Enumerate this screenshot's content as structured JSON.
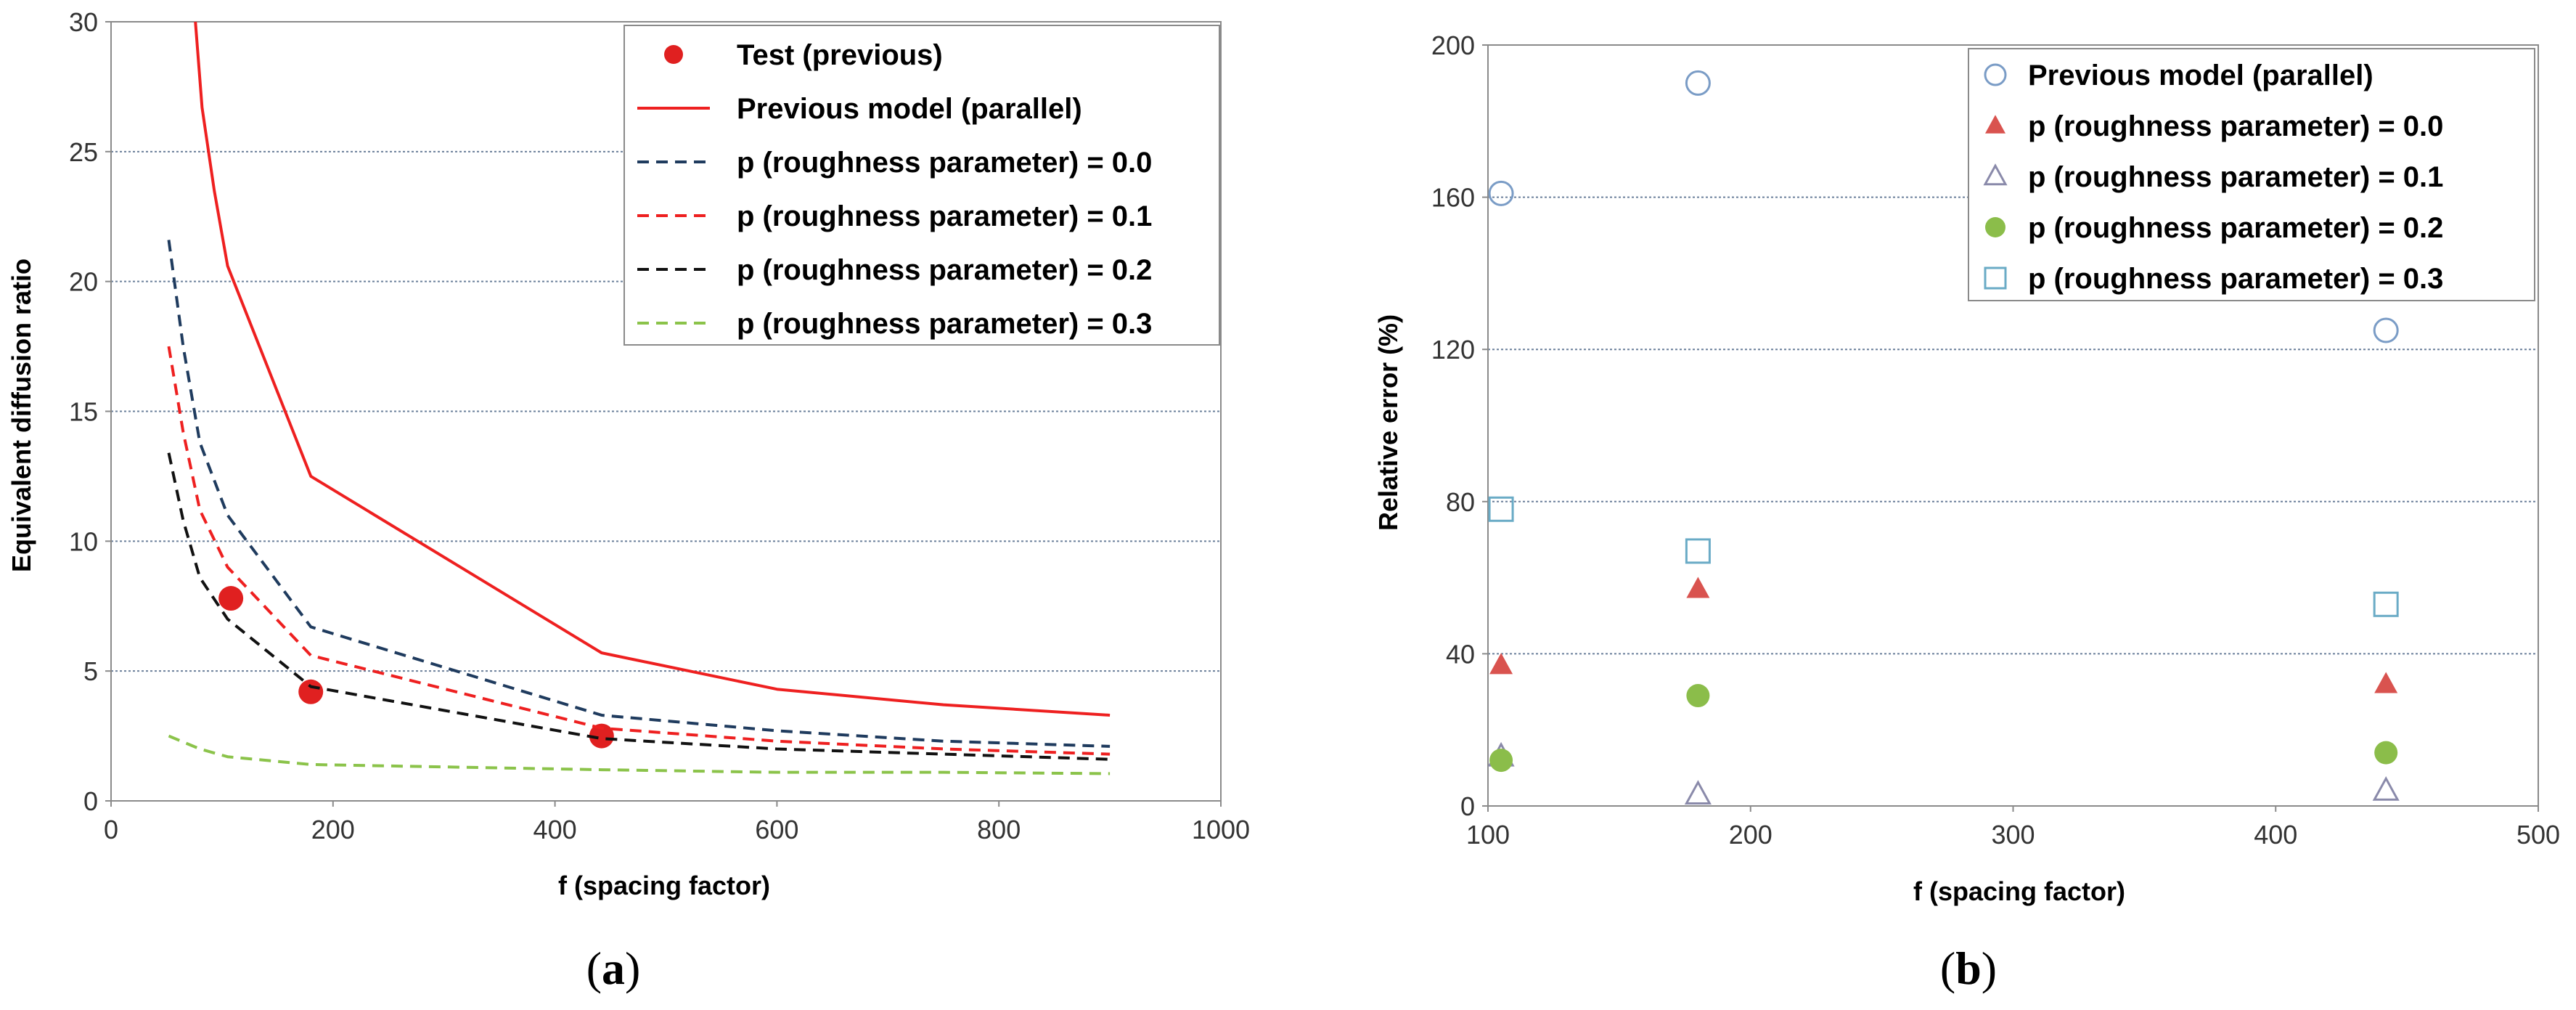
{
  "chart_data": [
    {
      "type": "line",
      "panel_label": "a",
      "xlabel": "f (spacing factor)",
      "ylabel": "Equivalent diffusion ratio",
      "xlim": [
        0,
        1000
      ],
      "ylim": [
        0,
        30
      ],
      "x_ticks": [
        0,
        200,
        400,
        600,
        800,
        1000
      ],
      "y_ticks": [
        0,
        5,
        10,
        15,
        20,
        25,
        30
      ],
      "grid": "horizontal dashed",
      "legend_position": "top-right",
      "series": [
        {
          "name": "Test (previous)",
          "style": "markers",
          "marker": "filled-circle",
          "color": "#e02020",
          "points": [
            [
              108,
              7.8
            ],
            [
              180,
              4.2
            ],
            [
              442,
              2.5
            ]
          ]
        },
        {
          "name": "Previous model (parallel)",
          "style": "solid",
          "color": "#ee2020",
          "points": [
            [
              76,
              30
            ],
            [
              82,
              26.7
            ],
            [
              93,
              23.5
            ],
            [
              105,
              20.6
            ],
            [
              180,
              12.5
            ],
            [
              442,
              5.7
            ],
            [
              600,
              4.3
            ],
            [
              750,
              3.7
            ],
            [
              900,
              3.3
            ]
          ]
        },
        {
          "name": "p (roughness parameter) = 0.0",
          "style": "dashed",
          "color": "#1f3b5e",
          "points": [
            [
              52,
              21.6
            ],
            [
              65,
              17.5
            ],
            [
              80,
              13.8
            ],
            [
              105,
              11.0
            ],
            [
              180,
              6.7
            ],
            [
              442,
              3.3
            ],
            [
              600,
              2.7
            ],
            [
              750,
              2.3
            ],
            [
              900,
              2.1
            ]
          ]
        },
        {
          "name": "p (roughness parameter) = 0.1",
          "style": "dashed",
          "color": "#ee2020",
          "points": [
            [
              52,
              17.5
            ],
            [
              65,
              14.2
            ],
            [
              80,
              11.2
            ],
            [
              105,
              9.0
            ],
            [
              180,
              5.6
            ],
            [
              442,
              2.8
            ],
            [
              600,
              2.3
            ],
            [
              750,
              2.0
            ],
            [
              900,
              1.8
            ]
          ]
        },
        {
          "name": "p (roughness parameter) = 0.2",
          "style": "dashed",
          "color": "#111111",
          "points": [
            [
              52,
              13.4
            ],
            [
              65,
              10.8
            ],
            [
              80,
              8.6
            ],
            [
              105,
              7.0
            ],
            [
              180,
              4.4
            ],
            [
              442,
              2.4
            ],
            [
              600,
              2.0
            ],
            [
              750,
              1.8
            ],
            [
              900,
              1.6
            ]
          ]
        },
        {
          "name": "p (roughness parameter) = 0.3",
          "style": "dashed",
          "color": "#8bc34a",
          "points": [
            [
              52,
              2.5
            ],
            [
              80,
              2.0
            ],
            [
              105,
              1.7
            ],
            [
              180,
              1.4
            ],
            [
              442,
              1.2
            ],
            [
              600,
              1.1
            ],
            [
              750,
              1.1
            ],
            [
              900,
              1.05
            ]
          ]
        }
      ]
    },
    {
      "type": "scatter",
      "panel_label": "b",
      "xlabel": "f (spacing factor)",
      "ylabel": "Relative error (%)",
      "xlim": [
        100,
        500
      ],
      "ylim": [
        0,
        200
      ],
      "x_ticks": [
        100,
        200,
        300,
        400,
        500
      ],
      "y_ticks": [
        0,
        40,
        80,
        120,
        160,
        200
      ],
      "grid": "horizontal dashed",
      "legend_position": "top-right",
      "series": [
        {
          "name": "Previous model (parallel)",
          "marker": "open-circle",
          "color": "#7a9cc6",
          "points": [
            [
              105,
              161
            ],
            [
              180,
              190
            ],
            [
              442,
              125
            ]
          ]
        },
        {
          "name": "p (roughness parameter) = 0.0",
          "marker": "filled-triangle",
          "color": "#d9534f",
          "points": [
            [
              105,
              37
            ],
            [
              180,
              57
            ],
            [
              442,
              32
            ]
          ]
        },
        {
          "name": "p (roughness parameter) = 0.1",
          "marker": "open-triangle",
          "color": "#8a8aaa",
          "points": [
            [
              105,
              13
            ],
            [
              180,
              3
            ],
            [
              442,
              4
            ]
          ]
        },
        {
          "name": "p (roughness parameter) = 0.2",
          "marker": "filled-circle",
          "color": "#8bbd4a",
          "points": [
            [
              105,
              12
            ],
            [
              180,
              29
            ],
            [
              442,
              14
            ]
          ]
        },
        {
          "name": "p (roughness parameter) = 0.3",
          "marker": "open-square",
          "color": "#6aabc6",
          "points": [
            [
              105,
              78
            ],
            [
              180,
              67
            ],
            [
              442,
              53
            ]
          ]
        }
      ]
    }
  ],
  "colors": {
    "axis": "#8a8a8a",
    "grid": "#6a7f9a"
  }
}
